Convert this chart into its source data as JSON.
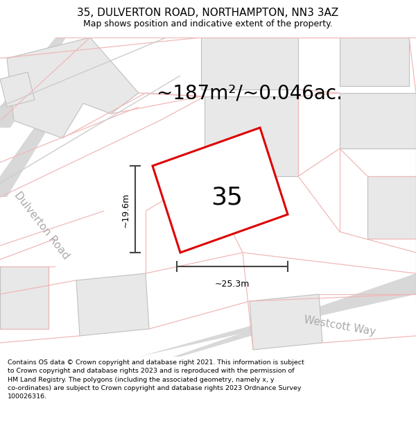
{
  "title": "35, DULVERTON ROAD, NORTHAMPTON, NN3 3AZ",
  "subtitle": "Map shows position and indicative extent of the property.",
  "area_text": "~187m²/~0.046ac.",
  "property_number": "35",
  "dim_vertical": "~19.6m",
  "dim_horizontal": "~25.3m",
  "street_label_1": "Dulverton Road",
  "street_label_2": "Westcott Way",
  "footer_lines": [
    "Contains OS data © Crown copyright and database right 2021. This information is subject",
    "to Crown copyright and database rights 2023 and is reproduced with the permission of",
    "HM Land Registry. The polygons (including the associated geometry, namely x, y",
    "co-ordinates) are subject to Crown copyright and database rights 2023 Ordnance Survey",
    "100026316."
  ],
  "map_bg": "#ffffff",
  "plot_color": "#dd0000",
  "plot_fill": "#ffffff",
  "building_fill": "#e8e8e8",
  "building_edge": "#c0c0c0",
  "cadastral_color": "#f0b8b8",
  "road_color": "#d8d8d8",
  "title_fontsize": 11,
  "subtitle_fontsize": 9,
  "area_fontsize": 20,
  "footer_fontsize": 6.8
}
